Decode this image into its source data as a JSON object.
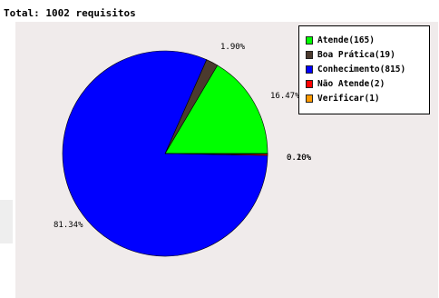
{
  "page": {
    "title": "Total: 1002 requisitos"
  },
  "chart_data": {
    "type": "pie",
    "title": "",
    "start_angle_deg": 0,
    "direction": "counterclockwise",
    "slices": [
      {
        "name": "Atende(165)",
        "value": 165,
        "percent_label": "16.47%",
        "color": "#00ff00"
      },
      {
        "name": "Boa Prática(19)",
        "value": 19,
        "percent_label": "1.90%",
        "color": "#4b3a2e"
      },
      {
        "name": "Conhecimento(815)",
        "value": 815,
        "percent_label": "81.34%",
        "color": "#0000ff"
      },
      {
        "name": "Não Atende(2)",
        "value": 2,
        "percent_label": "0.20%",
        "color": "#ff0000"
      },
      {
        "name": "Verificar(1)",
        "value": 1,
        "percent_label": "0.10%",
        "color": "#ff9900"
      }
    ],
    "legend_placement": "top-right",
    "background": "#f0ebeb"
  }
}
